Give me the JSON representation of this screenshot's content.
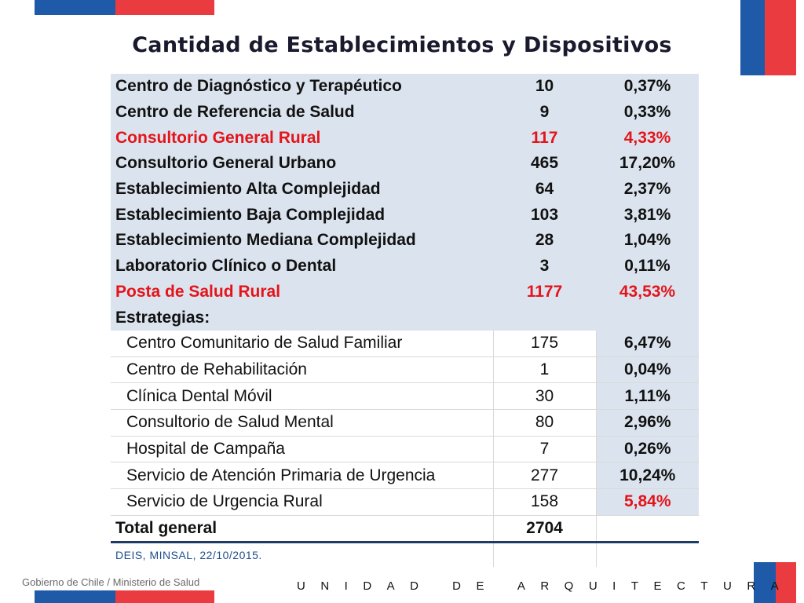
{
  "title": "Cantidad de Establecimientos y Dispositivos",
  "colors": {
    "blue": "#1e5aa8",
    "red": "#ea3c40",
    "highlight_red": "#e4141b",
    "row_fill": "#dbe4ee"
  },
  "table": {
    "rows": [
      {
        "name": "Centro de Diagnóstico y Terapéutico",
        "count": "10",
        "pct": "0,37%"
      },
      {
        "name": "Centro de Referencia de Salud",
        "count": "9",
        "pct": "0,33%"
      },
      {
        "name": "Consultorio General Rural",
        "count": "117",
        "pct": "4,33%"
      },
      {
        "name": "Consultorio General Urbano",
        "count": "465",
        "pct": "17,20%"
      },
      {
        "name": "Establecimiento Alta Complejidad",
        "count": "64",
        "pct": "2,37%"
      },
      {
        "name": "Establecimiento Baja Complejidad",
        "count": "103",
        "pct": "3,81%"
      },
      {
        "name": "Establecimiento Mediana Complejidad",
        "count": "28",
        "pct": "1,04%"
      },
      {
        "name": "Laboratorio Clínico o Dental",
        "count": "3",
        "pct": "0,11%"
      },
      {
        "name": "Posta de Salud Rural",
        "count": "1177",
        "pct": "43,53%"
      }
    ],
    "strategies_label": "Estrategias:",
    "strategies": [
      {
        "name": "Centro Comunitario de Salud Familiar",
        "count": "175",
        "pct": "6,47%"
      },
      {
        "name": "Centro de Rehabilitación",
        "count": "1",
        "pct": "0,04%"
      },
      {
        "name": "Clínica Dental Móvil",
        "count": "30",
        "pct": "1,11%"
      },
      {
        "name": "Consultorio de Salud Mental",
        "count": "80",
        "pct": "2,96%"
      },
      {
        "name": "Hospital de Campaña",
        "count": "7",
        "pct": "0,26%"
      },
      {
        "name": "Servicio de Atención Primaria de Urgencia",
        "count": "277",
        "pct": "10,24%"
      },
      {
        "name": "Servicio de Urgencia Rural",
        "count": "158",
        "pct": "5,84%"
      }
    ],
    "total": {
      "label": "Total general",
      "count": "2704"
    },
    "source": "DEIS, MINSAL, 22/10/2015."
  },
  "footer": {
    "left": "Gobierno de Chile / Ministerio de Salud",
    "right": "UNIDAD DE ARQUITECTURA"
  }
}
